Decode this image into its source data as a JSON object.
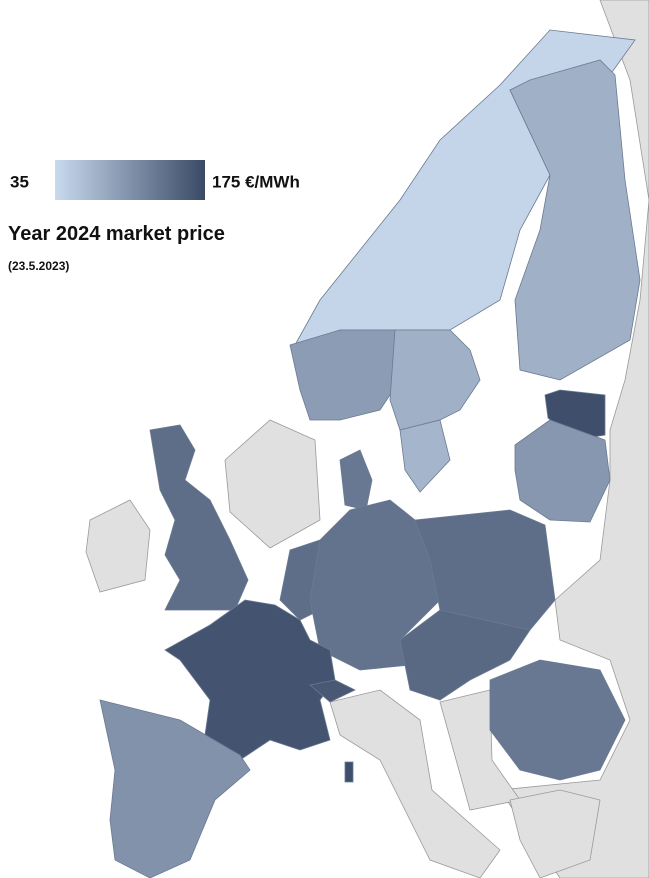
{
  "legend": {
    "min": 35,
    "max": {
      "value": 175,
      "label": "175 €/MWh"
    },
    "colors": [
      "#c9d9ee",
      "#3a4a66"
    ]
  },
  "title": "Year 2024 market price",
  "subtitle": "(23.5.2023)",
  "regions": [
    {
      "value": 40
    },
    {
      "value": 75
    },
    {
      "value": 95
    },
    {
      "value": 75
    },
    {
      "value": 70
    },
    {
      "value": 170
    },
    {
      "value": 100
    },
    {
      "value": 130
    },
    {
      "value": 140
    },
    {
      "value": 140
    },
    {
      "value": 135
    },
    {
      "value": 140
    },
    {
      "value": 145
    },
    {
      "value": 165
    },
    {
      "value": 160
    },
    {
      "value": 105
    },
    {
      "value": 130
    },
    {
      "value": 170
    }
  ]
}
